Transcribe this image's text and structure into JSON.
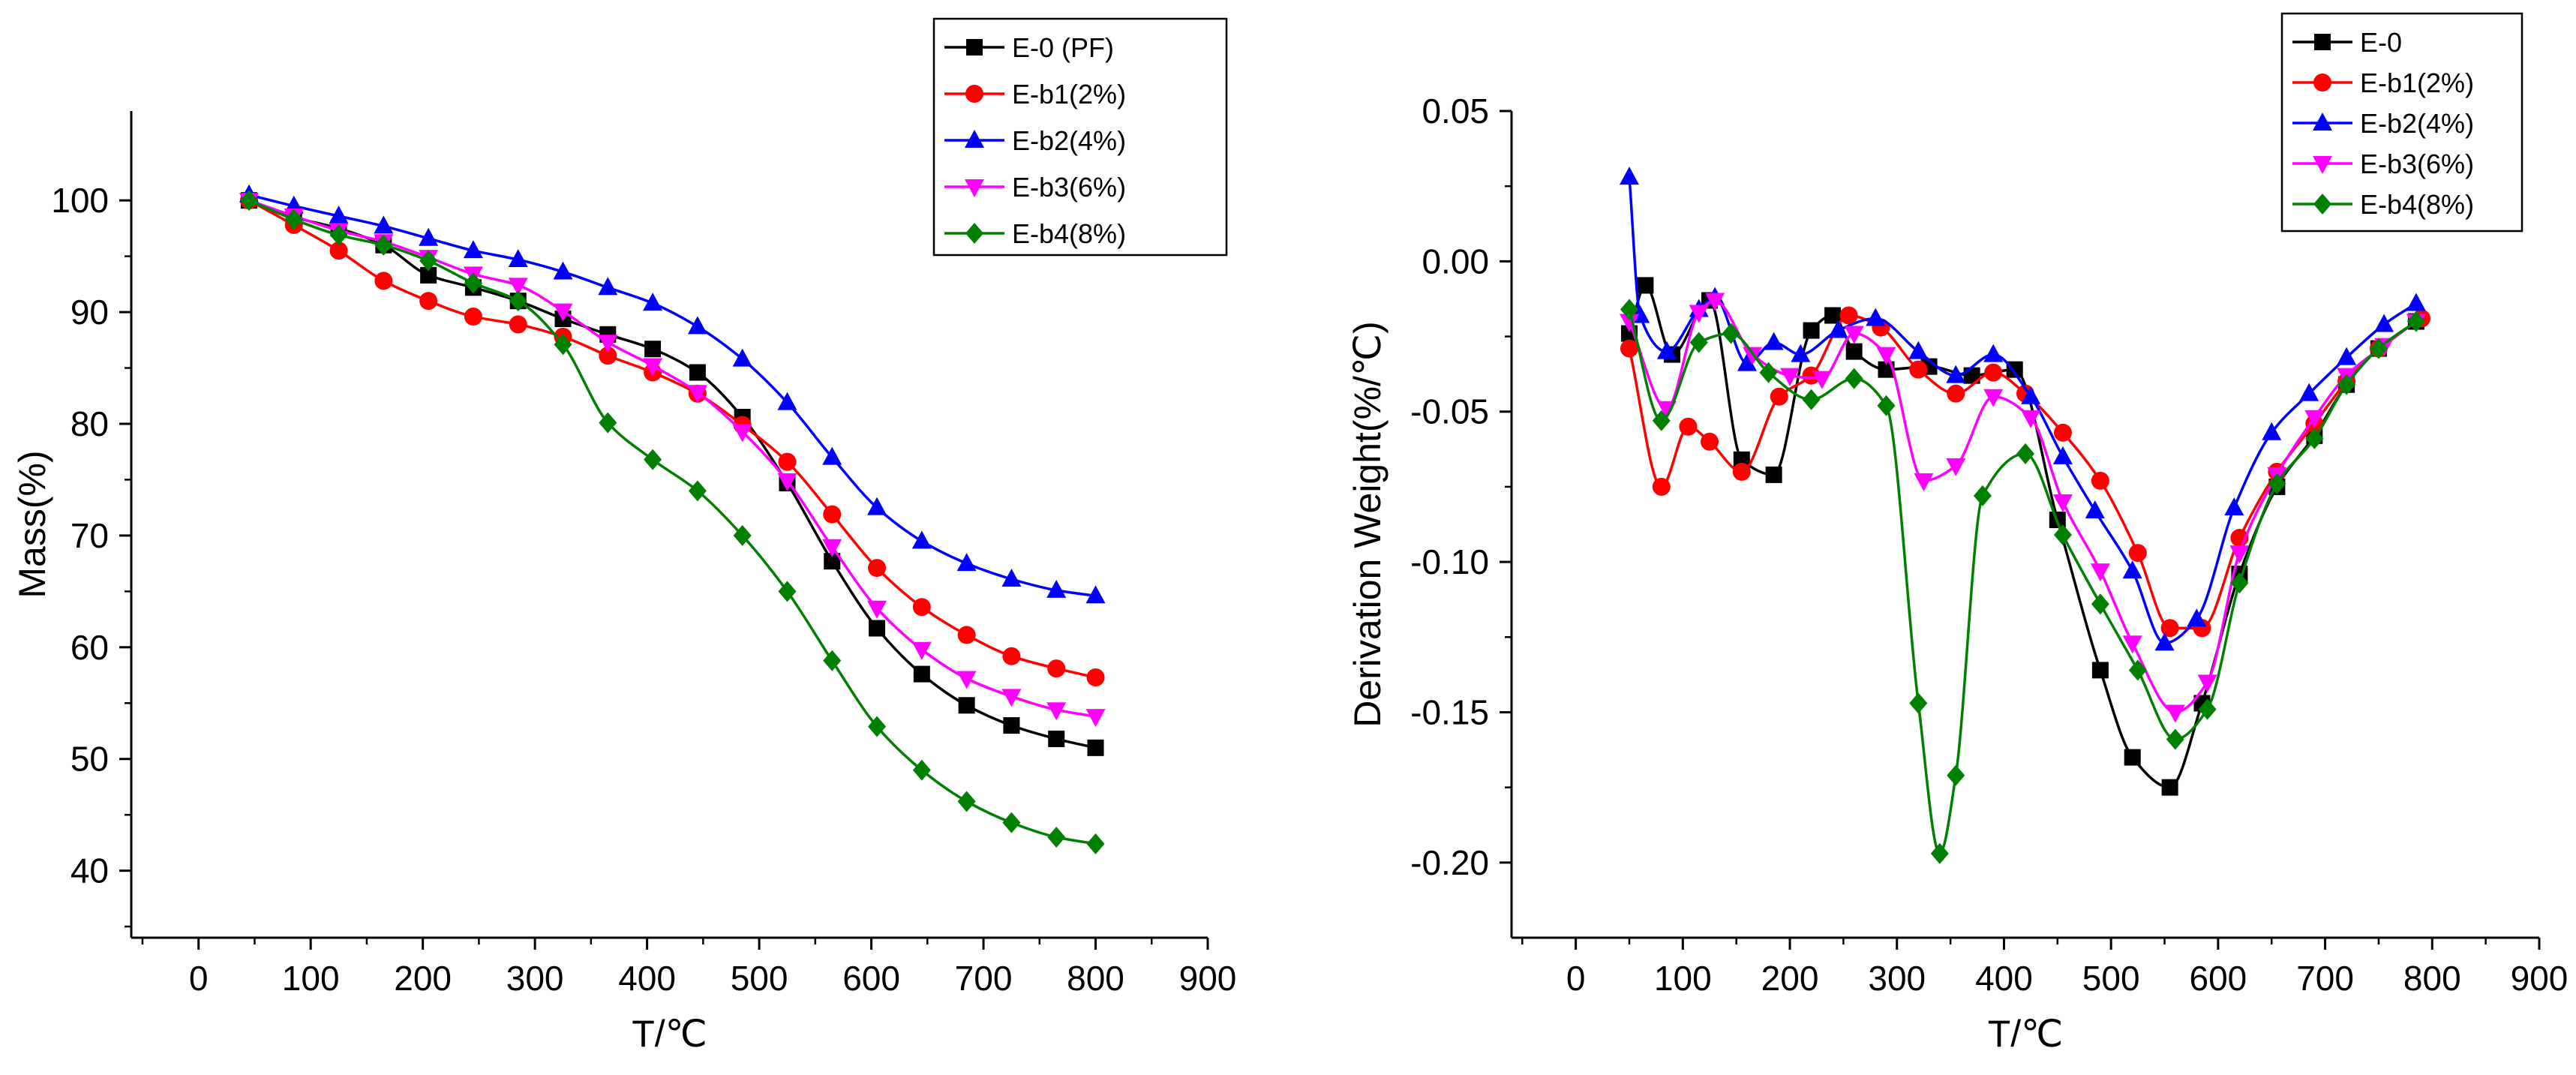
{
  "chart_data": [
    {
      "type": "line",
      "title": "",
      "xlabel": "T/℃",
      "ylabel": "Mass(%)",
      "xlim": [
        -60,
        900
      ],
      "ylim": [
        34,
        108
      ],
      "xticks": [
        0,
        100,
        200,
        300,
        400,
        500,
        600,
        700,
        800,
        900
      ],
      "yticks": [
        40,
        50,
        60,
        70,
        80,
        90,
        100
      ],
      "legend_position": "top-right",
      "series": [
        {
          "name": "E-0 (PF)",
          "color": "#000000",
          "marker": "square",
          "x": [
            45,
            85,
            125,
            165,
            205,
            245,
            285,
            325,
            365,
            405,
            445,
            485,
            525,
            565,
            605,
            645,
            685,
            725,
            765,
            800
          ],
          "y": [
            100,
            98.5,
            97.5,
            96.0,
            93.3,
            92.2,
            91.0,
            89.4,
            88.0,
            86.7,
            84.6,
            80.6,
            74.7,
            67.7,
            61.7,
            57.6,
            54.8,
            53.0,
            51.8,
            51.0
          ]
        },
        {
          "name": "E-b1(2%)",
          "color": "#ff0000",
          "marker": "circle",
          "x": [
            45,
            85,
            125,
            165,
            205,
            245,
            285,
            325,
            365,
            405,
            445,
            485,
            525,
            565,
            605,
            645,
            685,
            725,
            765,
            800
          ],
          "y": [
            100,
            97.8,
            95.5,
            92.8,
            91.0,
            89.6,
            88.9,
            87.8,
            86.1,
            84.6,
            82.7,
            79.9,
            76.6,
            71.9,
            67.1,
            63.6,
            61.1,
            59.2,
            58.1,
            57.3
          ]
        },
        {
          "name": "E-b2(4%)",
          "color": "#0000ff",
          "marker": "triangle-up",
          "x": [
            45,
            85,
            125,
            165,
            205,
            245,
            285,
            325,
            365,
            405,
            445,
            485,
            525,
            565,
            605,
            645,
            685,
            725,
            765,
            800
          ],
          "y": [
            100.5,
            99.5,
            98.6,
            97.7,
            96.6,
            95.5,
            94.7,
            93.6,
            92.2,
            90.8,
            88.7,
            85.8,
            81.9,
            77.0,
            72.5,
            69.5,
            67.5,
            66.1,
            65.1,
            64.6
          ]
        },
        {
          "name": "E-b3(6%)",
          "color": "#ff00ff",
          "marker": "triangle-down",
          "x": [
            45,
            85,
            125,
            165,
            205,
            245,
            285,
            325,
            365,
            405,
            445,
            485,
            525,
            565,
            605,
            645,
            685,
            725,
            765,
            800
          ],
          "y": [
            100,
            98.6,
            97.3,
            96.3,
            94.9,
            93.4,
            92.4,
            90.1,
            87.3,
            85.2,
            82.8,
            79.3,
            74.9,
            69.0,
            63.5,
            59.8,
            57.2,
            55.6,
            54.4,
            53.8
          ]
        },
        {
          "name": "E-b4(8%)",
          "color": "#008000",
          "marker": "diamond",
          "x": [
            45,
            85,
            125,
            165,
            205,
            245,
            285,
            325,
            365,
            405,
            445,
            485,
            525,
            565,
            605,
            645,
            685,
            725,
            765,
            800
          ],
          "y": [
            100,
            98.3,
            96.9,
            96.0,
            94.6,
            92.6,
            91.0,
            87.1,
            80.1,
            76.8,
            74.0,
            70.0,
            65.0,
            58.8,
            52.9,
            49.0,
            46.2,
            44.3,
            43.0,
            42.4
          ]
        }
      ]
    },
    {
      "type": "line",
      "title": "",
      "xlabel": "T/℃",
      "ylabel": "Derivation Weight(%/℃)",
      "xlim": [
        -60,
        900
      ],
      "ylim": [
        -0.225,
        0.05
      ],
      "xticks": [
        0,
        100,
        200,
        300,
        400,
        500,
        600,
        700,
        800,
        900
      ],
      "yticks": [
        0.05,
        0.0,
        -0.05,
        -0.1,
        -0.15,
        -0.2
      ],
      "ytick_labels": [
        "0.05",
        "0.00",
        "-0.05",
        "-0.10",
        "-0.15",
        "-0.20"
      ],
      "legend_position": "top-right",
      "series": [
        {
          "name": "E-0",
          "color": "#000000",
          "marker": "square",
          "x": [
            50,
            65,
            90,
            125,
            155,
            185,
            220,
            240,
            260,
            290,
            330,
            370,
            410,
            450,
            490,
            520,
            555,
            585,
            620,
            655,
            690,
            720,
            750,
            785
          ],
          "y": [
            -0.024,
            -0.008,
            -0.031,
            -0.013,
            -0.066,
            -0.071,
            -0.023,
            -0.018,
            -0.03,
            -0.036,
            -0.035,
            -0.038,
            -0.036,
            -0.086,
            -0.136,
            -0.165,
            -0.175,
            -0.147,
            -0.104,
            -0.075,
            -0.058,
            -0.041,
            -0.029,
            -0.02
          ]
        },
        {
          "name": "E-b1(2%)",
          "color": "#ff0000",
          "marker": "circle",
          "x": [
            50,
            80,
            105,
            125,
            155,
            190,
            220,
            255,
            285,
            320,
            355,
            390,
            420,
            455,
            490,
            525,
            555,
            585,
            620,
            655,
            690,
            720,
            750,
            790
          ],
          "y": [
            -0.029,
            -0.075,
            -0.055,
            -0.06,
            -0.07,
            -0.045,
            -0.038,
            -0.018,
            -0.022,
            -0.036,
            -0.044,
            -0.037,
            -0.044,
            -0.057,
            -0.073,
            -0.097,
            -0.122,
            -0.122,
            -0.092,
            -0.07,
            -0.054,
            -0.04,
            -0.029,
            -0.019
          ]
        },
        {
          "name": "E-b2(4%)",
          "color": "#0000ff",
          "marker": "triangle-up",
          "x": [
            50,
            60,
            85,
            115,
            130,
            160,
            185,
            210,
            245,
            280,
            320,
            355,
            390,
            425,
            455,
            485,
            520,
            550,
            580,
            615,
            650,
            685,
            720,
            755,
            785
          ],
          "y": [
            0.028,
            -0.018,
            -0.03,
            -0.016,
            -0.012,
            -0.034,
            -0.027,
            -0.031,
            -0.023,
            -0.019,
            -0.03,
            -0.038,
            -0.031,
            -0.045,
            -0.065,
            -0.083,
            -0.103,
            -0.127,
            -0.119,
            -0.082,
            -0.057,
            -0.044,
            -0.032,
            -0.021,
            -0.014
          ]
        },
        {
          "name": "E-b3(6%)",
          "color": "#ff00ff",
          "marker": "triangle-down",
          "x": [
            50,
            85,
            115,
            130,
            165,
            200,
            230,
            260,
            290,
            325,
            355,
            390,
            425,
            455,
            490,
            520,
            560,
            590,
            620,
            655,
            690,
            720,
            755,
            785
          ],
          "y": [
            -0.02,
            -0.049,
            -0.017,
            -0.013,
            -0.031,
            -0.038,
            -0.039,
            -0.024,
            -0.031,
            -0.073,
            -0.068,
            -0.045,
            -0.052,
            -0.08,
            -0.103,
            -0.127,
            -0.15,
            -0.14,
            -0.097,
            -0.071,
            -0.052,
            -0.038,
            -0.028,
            -0.02
          ]
        },
        {
          "name": "E-b4(8%)",
          "color": "#008000",
          "marker": "diamond",
          "x": [
            50,
            80,
            115,
            145,
            180,
            220,
            260,
            290,
            320,
            340,
            355,
            380,
            420,
            455,
            490,
            525,
            560,
            590,
            620,
            655,
            690,
            720,
            750,
            785
          ],
          "y": [
            -0.016,
            -0.053,
            -0.027,
            -0.024,
            -0.037,
            -0.046,
            -0.039,
            -0.048,
            -0.147,
            -0.197,
            -0.171,
            -0.078,
            -0.064,
            -0.091,
            -0.114,
            -0.136,
            -0.159,
            -0.149,
            -0.107,
            -0.074,
            -0.059,
            -0.041,
            -0.029,
            -0.02
          ]
        }
      ]
    }
  ]
}
